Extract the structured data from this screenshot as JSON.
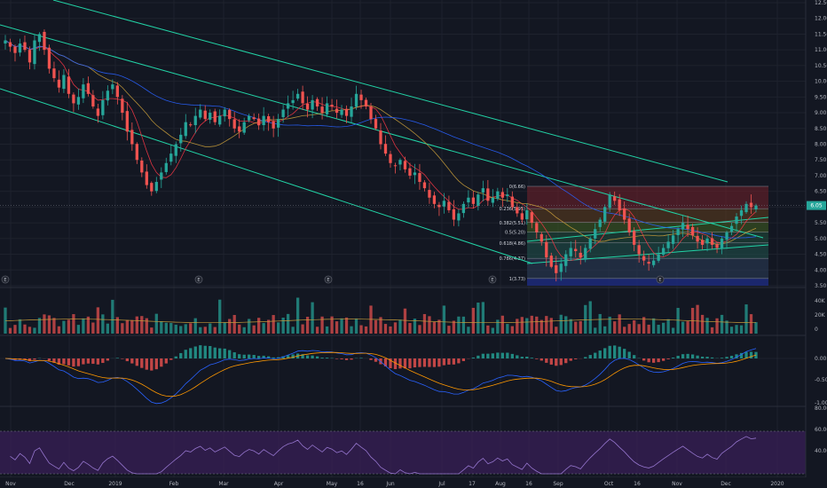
{
  "colors": {
    "background": "#131722",
    "grid": "#1e222d",
    "up": "#26a69a",
    "down": "#ef5350",
    "channel": "#22d3a6",
    "ma_fast": "#f23645",
    "ma_mid": "#c49a3a",
    "ma_slow": "#2962ff",
    "macd": "#2962ff",
    "signal": "#ff9800",
    "rsi": "#9575cd",
    "rsi_band": "#3b1f5a",
    "price_badge": "#26a69a"
  },
  "price_axis": {
    "ticks": [
      "12.50",
      "12.00",
      "11.50",
      "11.00",
      "10.50",
      "10.00",
      "9.50",
      "9.00",
      "8.50",
      "8.00",
      "7.50",
      "7.00",
      "6.50",
      "6.00",
      "5.50",
      "5.00",
      "4.50",
      "4.00",
      "3.50"
    ],
    "last_price": "6.05"
  },
  "volume_axis": {
    "ticks": [
      "40K",
      "20K",
      "0"
    ]
  },
  "macd_axis": {
    "ticks": [
      "0.00",
      "-0.50",
      "-1.00"
    ]
  },
  "rsi_axis": {
    "ticks": [
      "80.00",
      "60.00",
      "40.00"
    ]
  },
  "time_axis": {
    "labels": [
      "Nov",
      "Dec",
      "2019",
      "Feb",
      "Mar",
      "Apr",
      "May",
      "16",
      "Jun",
      "Jul",
      "17",
      "Aug",
      "16",
      "Sep",
      "Oct",
      "16",
      "Nov",
      "Dec",
      "2020"
    ]
  },
  "event_markers": [
    "E",
    "E",
    "E",
    "E",
    "E"
  ],
  "fib_levels": [
    {
      "label": "0(6.66)",
      "value": 6.66
    },
    {
      "label": "0.236(5.95)",
      "value": 5.95
    },
    {
      "label": "0.382(5.51)",
      "value": 5.51
    },
    {
      "label": "0.5(5.20)",
      "value": 5.2
    },
    {
      "label": "0.618(4.86)",
      "value": 4.86
    },
    {
      "label": "0.786(4.37)",
      "value": 4.37
    },
    {
      "label": "1(3.73)",
      "value": 3.73
    }
  ],
  "chart_data": {
    "type": "candlestick",
    "title": "",
    "x_range": [
      "Nov",
      "2020"
    ],
    "ylim": [
      3.5,
      12.5
    ],
    "closes": [
      11.3,
      11.1,
      10.9,
      11.2,
      11.0,
      10.6,
      11.3,
      11.5,
      11.0,
      10.4,
      10.1,
      9.8,
      10.2,
      9.6,
      9.3,
      9.5,
      9.9,
      9.6,
      9.2,
      8.9,
      9.4,
      9.7,
      9.9,
      9.5,
      9.0,
      8.4,
      8.0,
      7.5,
      7.1,
      6.7,
      6.5,
      6.8,
      7.1,
      7.4,
      7.7,
      8.0,
      8.3,
      8.7,
      8.6,
      8.9,
      9.1,
      8.8,
      9.0,
      8.7,
      8.9,
      9.1,
      8.8,
      8.5,
      8.4,
      8.7,
      8.9,
      8.8,
      8.6,
      8.9,
      8.7,
      8.5,
      8.8,
      9.1,
      9.3,
      9.4,
      9.6,
      9.3,
      9.1,
      9.4,
      9.2,
      9.0,
      9.3,
      9.2,
      9.0,
      9.1,
      8.9,
      9.2,
      9.6,
      9.4,
      9.2,
      8.8,
      8.5,
      8.0,
      7.7,
      7.4,
      7.3,
      7.5,
      7.2,
      7.0,
      7.1,
      6.8,
      6.6,
      6.3,
      6.1,
      6.0,
      6.2,
      5.9,
      5.6,
      5.8,
      6.1,
      6.3,
      6.1,
      6.4,
      6.6,
      6.2,
      6.3,
      6.5,
      6.3,
      6.4,
      6.0,
      5.8,
      5.6,
      5.9,
      5.5,
      5.2,
      4.9,
      4.4,
      4.1,
      3.9,
      4.2,
      4.5,
      4.7,
      4.6,
      4.4,
      4.7,
      5.0,
      5.3,
      5.6,
      6.0,
      6.4,
      6.2,
      5.9,
      5.6,
      5.2,
      4.8,
      4.5,
      4.3,
      4.2,
      4.3,
      4.5,
      4.7,
      4.9,
      5.1,
      5.3,
      5.5,
      5.3,
      5.1,
      4.9,
      4.8,
      5.0,
      4.8,
      4.7,
      5.0,
      5.2,
      5.4,
      5.7,
      5.9,
      6.1,
      6.0,
      6.05
    ],
    "series": [
      {
        "name": "Volume"
      },
      {
        "name": "MACD"
      },
      {
        "name": "RSI"
      }
    ]
  }
}
